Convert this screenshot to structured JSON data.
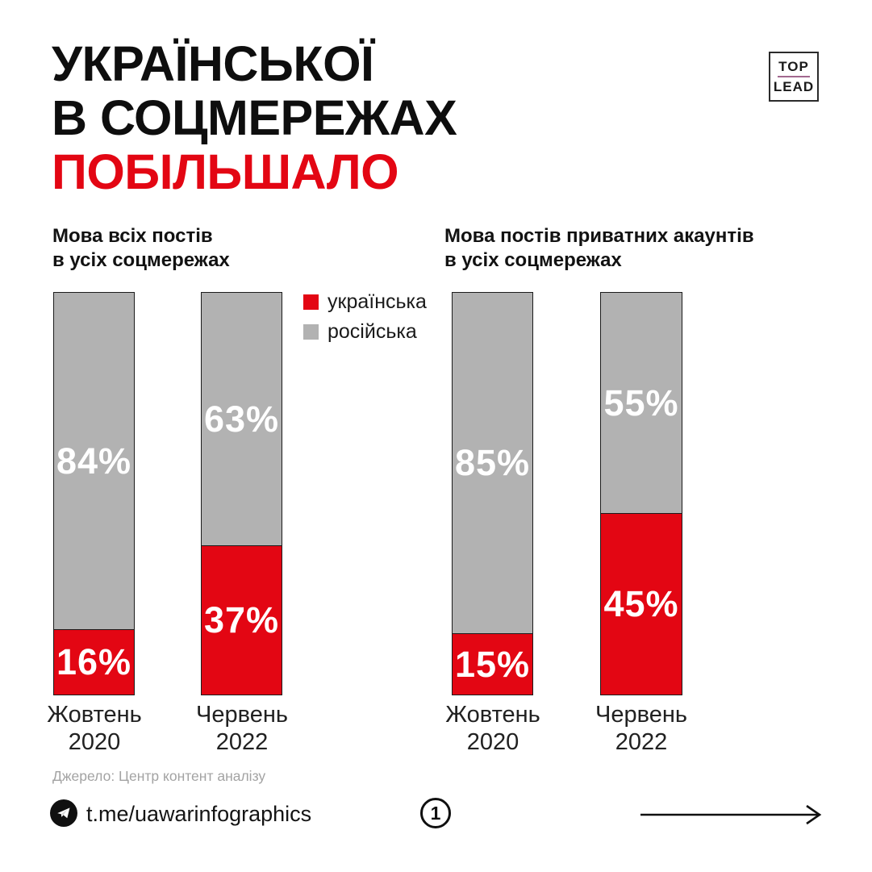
{
  "page": {
    "background": "#ffffff"
  },
  "title": {
    "line1": "УКРАЇНСЬКОЇ",
    "line2": "В СОЦМЕРЕЖАХ",
    "line3": "ПОБІЛЬШАЛО",
    "text_color": "#0e0e0e",
    "accent_color": "#e30613"
  },
  "logo": {
    "top": "TOP",
    "lead": "LEAD",
    "divider_color": "#a2688f"
  },
  "legend": {
    "items": [
      {
        "label": "українська",
        "color": "#e30613"
      },
      {
        "label": "російська",
        "color": "#b2b2b2"
      }
    ]
  },
  "chart_data": [
    {
      "type": "bar",
      "stacked": true,
      "title": "Мова всіх постів в усіх соцмережах",
      "title_lines": {
        "l1": "Мова всіх постів",
        "l2": "в усіх соцмережах"
      },
      "unit": "%",
      "ylim": [
        0,
        100
      ],
      "grid": false,
      "categories": [
        "Жовтень 2020",
        "Червень 2022"
      ],
      "series": [
        {
          "name": "українська",
          "color": "#e30613",
          "values": [
            16,
            37
          ]
        },
        {
          "name": "російська",
          "color": "#b2b2b2",
          "values": [
            84,
            63
          ]
        }
      ],
      "bars": [
        {
          "category": "Жовтень 2020",
          "cat_line1": "Жовтень",
          "cat_line2": "2020",
          "segments": [
            {
              "name": "російська",
              "value": 84,
              "label": "84%",
              "color": "#b2b2b2"
            },
            {
              "name": "українська",
              "value": 16,
              "label": "16%",
              "color": "#e30613"
            }
          ]
        },
        {
          "category": "Червень 2022",
          "cat_line1": "Червень",
          "cat_line2": "2022",
          "segments": [
            {
              "name": "російська",
              "value": 63,
              "label": "63%",
              "color": "#b2b2b2"
            },
            {
              "name": "українська",
              "value": 37,
              "label": "37%",
              "color": "#e30613"
            }
          ]
        }
      ]
    },
    {
      "type": "bar",
      "stacked": true,
      "title": "Мова постів приватних акаунтів в усіх соцмережах",
      "title_lines": {
        "l1": "Мова постів приватних акаунтів",
        "l2": "в усіх соцмережах"
      },
      "unit": "%",
      "ylim": [
        0,
        100
      ],
      "grid": false,
      "categories": [
        "Жовтень 2020",
        "Червень 2022"
      ],
      "series": [
        {
          "name": "українська",
          "color": "#e30613",
          "values": [
            15,
            45
          ]
        },
        {
          "name": "російська",
          "color": "#b2b2b2",
          "values": [
            85,
            55
          ]
        }
      ],
      "bars": [
        {
          "category": "Жовтень 2020",
          "cat_line1": "Жовтень",
          "cat_line2": "2020",
          "segments": [
            {
              "name": "російська",
              "value": 85,
              "label": "85%",
              "color": "#b2b2b2"
            },
            {
              "name": "українська",
              "value": 15,
              "label": "15%",
              "color": "#e30613"
            }
          ]
        },
        {
          "category": "Червень 2022",
          "cat_line1": "Червень",
          "cat_line2": "2022",
          "segments": [
            {
              "name": "російська",
              "value": 55,
              "label": "55%",
              "color": "#b2b2b2"
            },
            {
              "name": "українська",
              "value": 45,
              "label": "45%",
              "color": "#e30613"
            }
          ]
        }
      ]
    }
  ],
  "source": "Джерело: Центр контент аналізу",
  "footer": {
    "telegram_link": "t.me/uawarinfographics",
    "page_number": "1"
  }
}
